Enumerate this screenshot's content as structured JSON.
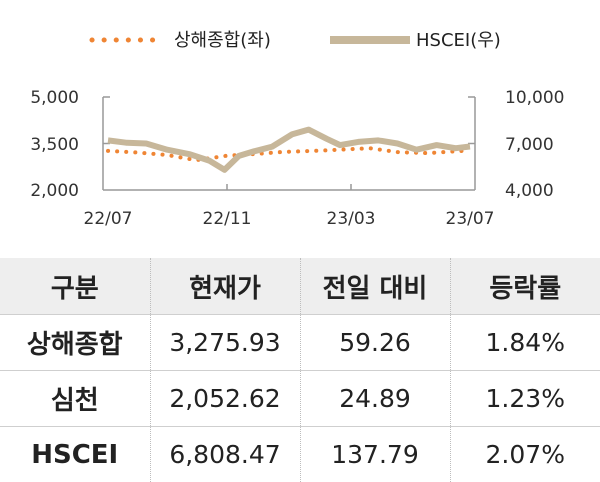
{
  "chart_data": {
    "type": "line",
    "legend": [
      "상해종합(좌)",
      "HSCEI(우)"
    ],
    "legend_placement": "top-center",
    "x_tick_labels": [
      "22/07",
      "22/11",
      "23/03",
      "23/07"
    ],
    "y_left_tick_labels": [
      "5,000",
      "3,500",
      "2,000"
    ],
    "y_right_tick_labels": [
      "10,000",
      "7,000",
      "4,000"
    ],
    "y_left_range": [
      2000,
      5000
    ],
    "y_right_range": [
      4000,
      10000
    ],
    "grid": false,
    "colors": {
      "shanghai": "#ef8534",
      "hscei": "#c7b79a",
      "axis": "#999999"
    },
    "series": [
      {
        "name": "상해종합(좌)",
        "axis": "left",
        "style": "dotted",
        "x": [
          "2022-07-01",
          "2022-08-01",
          "2022-09-01",
          "2022-10-01",
          "2022-11-01",
          "2022-12-01",
          "2023-01-01",
          "2023-02-01",
          "2023-03-01",
          "2023-04-01",
          "2023-05-01",
          "2023-06-01",
          "2023-07-15"
        ],
        "values": [
          3260,
          3210,
          3130,
          2960,
          3100,
          3160,
          3230,
          3260,
          3300,
          3350,
          3220,
          3190,
          3276
        ]
      },
      {
        "name": "HSCEI(우)",
        "axis": "right",
        "style": "solid",
        "x": [
          "2022-07-01",
          "2022-07-20",
          "2022-08-10",
          "2022-09-01",
          "2022-09-25",
          "2022-10-15",
          "2022-10-31",
          "2022-11-15",
          "2022-12-01",
          "2022-12-20",
          "2023-01-10",
          "2023-01-27",
          "2023-02-15",
          "2023-03-01",
          "2023-03-20",
          "2023-04-10",
          "2023-04-30",
          "2023-05-20",
          "2023-06-10",
          "2023-06-30",
          "2023-07-15"
        ],
        "values": [
          7200,
          7050,
          7000,
          6600,
          6300,
          5900,
          5300,
          6200,
          6500,
          6800,
          7600,
          7900,
          7300,
          6900,
          7100,
          7200,
          7000,
          6600,
          6900,
          6700,
          6808
        ]
      }
    ]
  },
  "table": {
    "headers": [
      "구분",
      "현재가",
      "전일 대비",
      "등락률"
    ],
    "rows": [
      {
        "name": "상해종합",
        "price": "3,275.93",
        "change": "59.26",
        "rate": "1.84%"
      },
      {
        "name": "심천",
        "price": "2,052.62",
        "change": "24.89",
        "rate": "1.23%"
      },
      {
        "name": "HSCEI",
        "price": "6,808.47",
        "change": "137.79",
        "rate": "2.07%"
      }
    ]
  }
}
